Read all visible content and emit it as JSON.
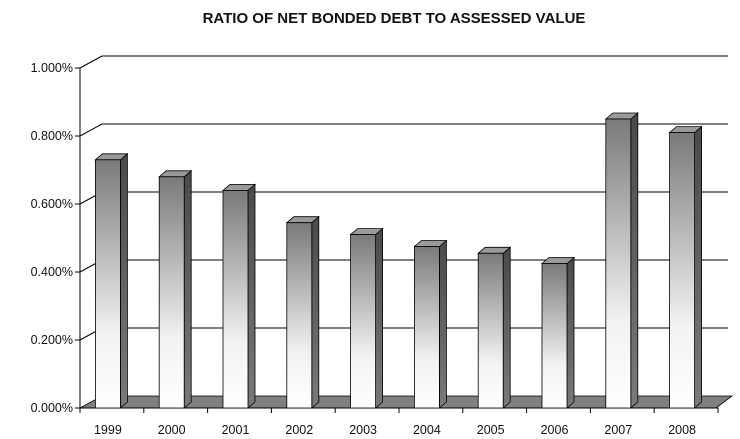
{
  "chart_data": {
    "type": "bar",
    "title": "RATIO OF NET BONDED DEBT TO ASSESSED VALUE",
    "xlabel": "",
    "ylabel": "",
    "categories": [
      "1999",
      "2000",
      "2001",
      "2002",
      "2003",
      "2004",
      "2005",
      "2006",
      "2007",
      "2008"
    ],
    "values": [
      0.73,
      0.68,
      0.64,
      0.545,
      0.51,
      0.475,
      0.455,
      0.425,
      0.85,
      0.81
    ],
    "yticks": [
      0,
      0.2,
      0.4,
      0.6,
      0.8,
      1.0
    ],
    "ytick_labels": [
      "0.000%",
      "0.200%",
      "0.400%",
      "0.600%",
      "0.800%",
      "1.000%"
    ],
    "ylim": [
      0,
      1.0
    ],
    "grid": true,
    "legend": "none",
    "colors": {
      "bar_dark": "#7a7a7a",
      "bar_light": "#ffffff",
      "bar_side": "#5e5e5e",
      "bar_top": "#9a9a9a",
      "floor": "#808080",
      "grid": "#000000"
    }
  }
}
